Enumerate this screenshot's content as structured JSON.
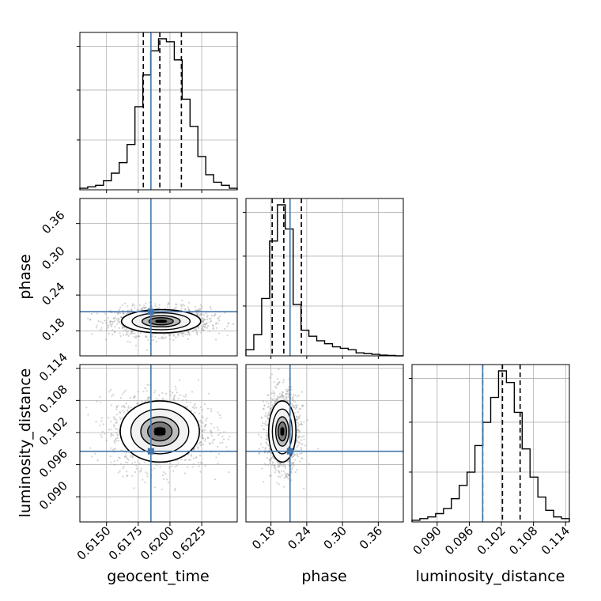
{
  "chart_data": {
    "type": "corner",
    "parameters": [
      "geocent_time",
      "phase",
      "luminosity_distance"
    ],
    "axis_labels": {
      "geocent_time": "geocent_time",
      "phase": "phase",
      "luminosity_distance": "luminosity_distance"
    },
    "ranges": {
      "geocent_time": [
        0.6129,
        0.6253
      ],
      "phase": [
        0.138,
        0.402
      ],
      "luminosity_distance": [
        0.0853,
        0.1147
      ]
    },
    "ticks": {
      "geocent_time": [
        "0.6150",
        "0.6175",
        "0.6200",
        "0.6225"
      ],
      "phase": [
        "0.18",
        "0.24",
        "0.30",
        "0.36"
      ],
      "luminosity_distance": [
        "0.090",
        "0.096",
        "0.102",
        "0.108",
        "0.114"
      ]
    },
    "truths": {
      "geocent_time": 0.6185,
      "phase": 0.212,
      "luminosity_distance": 0.0985
    },
    "quantiles": {
      "geocent_time": [
        0.6179,
        0.6192,
        0.6209
      ],
      "phase": [
        0.182,
        0.2015,
        0.231
      ],
      "luminosity_distance": [
        0.0985,
        0.1022,
        0.1055
      ]
    },
    "histograms": {
      "geocent_time": {
        "bin_edges": [
          0.6129,
          0.61352,
          0.61414,
          0.61476,
          0.61538,
          0.616,
          0.61662,
          0.61724,
          0.61786,
          0.61848,
          0.6191,
          0.61972,
          0.62034,
          0.62096,
          0.62158,
          0.6222,
          0.62282,
          0.62344,
          0.62406,
          0.62468,
          0.6253
        ],
        "counts": [
          0.01,
          0.02,
          0.03,
          0.06,
          0.11,
          0.18,
          0.3,
          0.55,
          0.76,
          0.92,
          1.0,
          0.98,
          0.86,
          0.6,
          0.42,
          0.22,
          0.1,
          0.05,
          0.03,
          0.01
        ]
      },
      "phase": {
        "bin_edges": [
          0.138,
          0.1512,
          0.1644,
          0.1776,
          0.1908,
          0.204,
          0.2172,
          0.2304,
          0.2436,
          0.2568,
          0.27,
          0.2832,
          0.2964,
          0.3096,
          0.3228,
          0.336,
          0.3492,
          0.3624,
          0.3756,
          0.3888,
          0.402
        ],
        "counts": [
          0.04,
          0.14,
          0.38,
          0.76,
          1.0,
          0.84,
          0.34,
          0.17,
          0.13,
          0.1,
          0.08,
          0.06,
          0.05,
          0.04,
          0.02,
          0.015,
          0.01,
          0.005,
          0.003,
          0.0
        ]
      },
      "luminosity_distance": {
        "bin_edges": [
          0.0853,
          0.08677,
          0.08824,
          0.08971,
          0.09118,
          0.09265,
          0.09412,
          0.09559,
          0.09706,
          0.09853,
          0.1,
          0.10147,
          0.10294,
          0.10441,
          0.10588,
          0.10735,
          0.10882,
          0.11029,
          0.11176,
          0.11323,
          0.1147
        ],
        "counts": [
          0.01,
          0.02,
          0.03,
          0.05,
          0.08,
          0.14,
          0.22,
          0.3,
          0.46,
          0.6,
          0.75,
          0.91,
          0.84,
          0.66,
          0.44,
          0.27,
          0.15,
          0.07,
          0.03,
          0.02
        ]
      }
    },
    "scatter_style": {
      "point_color": "#9e9e9e",
      "fill_color": "#000000"
    },
    "truth_color": "#4477aa",
    "grid": true
  }
}
